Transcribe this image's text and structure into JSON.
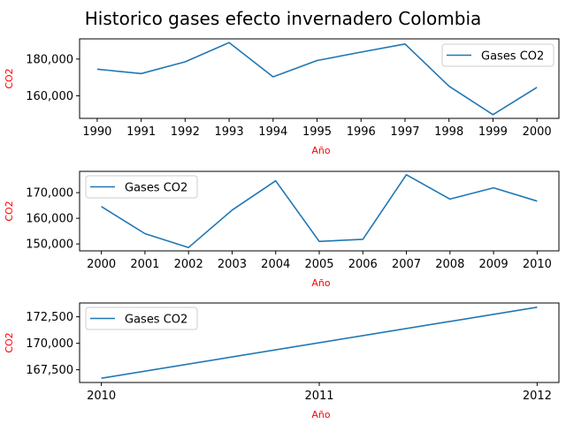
{
  "title": "Historico gases efecto invernadero Colombia",
  "colors": {
    "line": "#1f77b4",
    "axis_label": "#ff0000"
  },
  "chart_data": [
    {
      "type": "line",
      "xlabel": "Año",
      "ylabel": "CO2",
      "x": [
        1990,
        1991,
        1992,
        1993,
        1994,
        1995,
        1996,
        1997,
        1998,
        1999,
        2000
      ],
      "series": [
        {
          "name": "Gases CO2",
          "values": [
            174500,
            172100,
            178500,
            189000,
            170300,
            179200,
            183800,
            188200,
            165200,
            149700,
            164600
          ]
        }
      ],
      "xticks": [
        "1990",
        "1991",
        "1992",
        "1993",
        "1994",
        "1995",
        "1996",
        "1997",
        "1998",
        "1999",
        "2000"
      ],
      "yticks": [
        160000,
        180000
      ],
      "ytick_labels": [
        "160,000",
        "180,000"
      ],
      "xlim": [
        1989.6,
        2000.5
      ],
      "ylim": [
        147700,
        191000
      ],
      "legend_position": "upper right"
    },
    {
      "type": "line",
      "xlabel": "Año",
      "ylabel": "CO2",
      "x": [
        2000,
        2001,
        2002,
        2003,
        2004,
        2005,
        2006,
        2007,
        2008,
        2009,
        2010
      ],
      "series": [
        {
          "name": "Gases CO2",
          "values": [
            164600,
            154000,
            148600,
            163200,
            174600,
            151000,
            151800,
            177000,
            167500,
            171900,
            166700
          ]
        }
      ],
      "xticks": [
        "2000",
        "2001",
        "2002",
        "2003",
        "2004",
        "2005",
        "2006",
        "2007",
        "2008",
        "2009",
        "2010"
      ],
      "yticks": [
        150000,
        160000,
        170000
      ],
      "ytick_labels": [
        "150,000",
        "160,000",
        "170,000"
      ],
      "xlim": [
        1999.5,
        2010.5
      ],
      "ylim": [
        147300,
        178300
      ],
      "legend_position": "upper left"
    },
    {
      "type": "line",
      "xlabel": "Año",
      "ylabel": "CO2",
      "x": [
        2010,
        2012
      ],
      "series": [
        {
          "name": "Gases CO2",
          "values": [
            166700,
            173400
          ]
        }
      ],
      "xticks": [
        "2010",
        "2011",
        "2012"
      ],
      "ytick_labels": [
        "167,500",
        "170,000",
        "172,500"
      ],
      "yticks": [
        167500,
        170000,
        172500
      ],
      "xtick_values": [
        2010,
        2011,
        2012
      ],
      "xlim": [
        2009.9,
        2012.1
      ],
      "ylim": [
        166300,
        173800
      ],
      "legend_position": "upper left"
    }
  ]
}
